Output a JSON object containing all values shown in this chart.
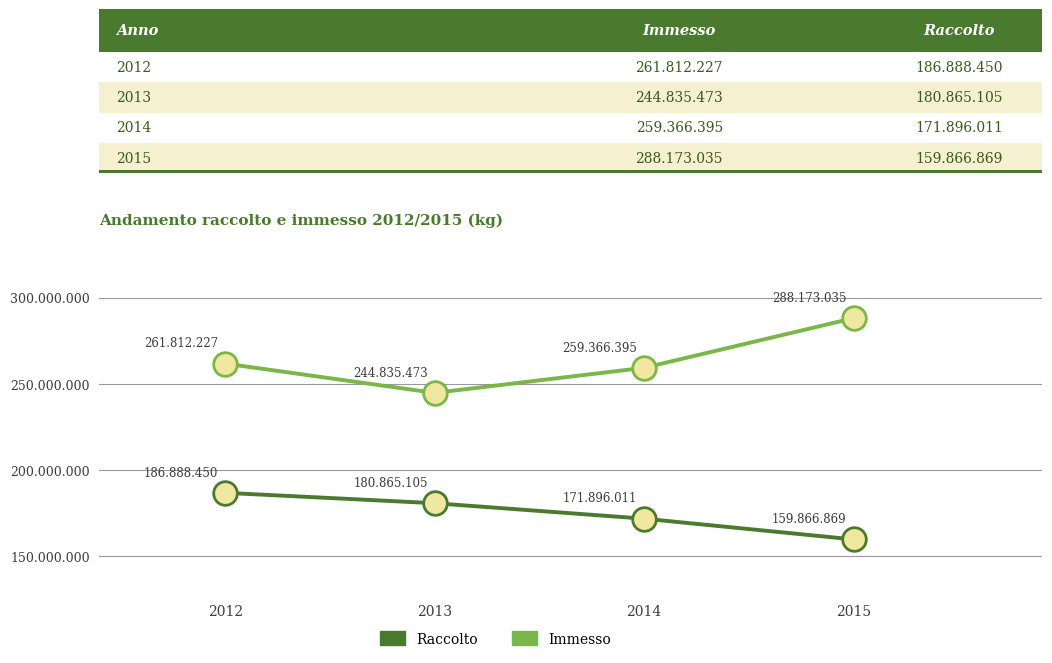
{
  "years": [
    2012,
    2013,
    2014,
    2015
  ],
  "immesso": [
    261812227,
    244835473,
    259366395,
    288173035
  ],
  "raccolto": [
    186888450,
    180865105,
    171896011,
    159866869
  ],
  "immesso_labels": [
    "261.812.227",
    "244.835.473",
    "259.366.395",
    "288.173.035"
  ],
  "raccolto_labels": [
    "186.888.450",
    "180.865.105",
    "171.896.011",
    "159.866.869"
  ],
  "table_header_bg": "#4a7a2e",
  "table_header_color": "#ffffff",
  "table_row_bg_odd": "#ffffff",
  "table_row_bg_even": "#f5f0d0",
  "table_bottom_border": "#4a7a2e",
  "table_text_color": "#3a5a1e",
  "chart_title": "Andamento raccolto e immesso 2012/2015 (kg)",
  "chart_title_color": "#4a7a2e",
  "line_immesso_color": "#7ab648",
  "line_raccolto_color": "#4a7a2e",
  "marker_fill_color": "#f0e8a0",
  "marker_edge_immesso": "#7ab648",
  "marker_edge_raccolto": "#4a7a2e",
  "background_color": "#ffffff",
  "anno_col_label": "Anno",
  "immesso_col_label": "Immesso",
  "raccolto_col_label": "Raccolto",
  "legend_raccolto": "Raccolto",
  "legend_immesso": "Immesso",
  "yticks": [
    150000000,
    200000000,
    250000000,
    300000000
  ],
  "ylim": [
    128000000,
    318000000
  ],
  "xlim": [
    2011.4,
    2015.9
  ],
  "text_color_dark": "#3d3d3d"
}
